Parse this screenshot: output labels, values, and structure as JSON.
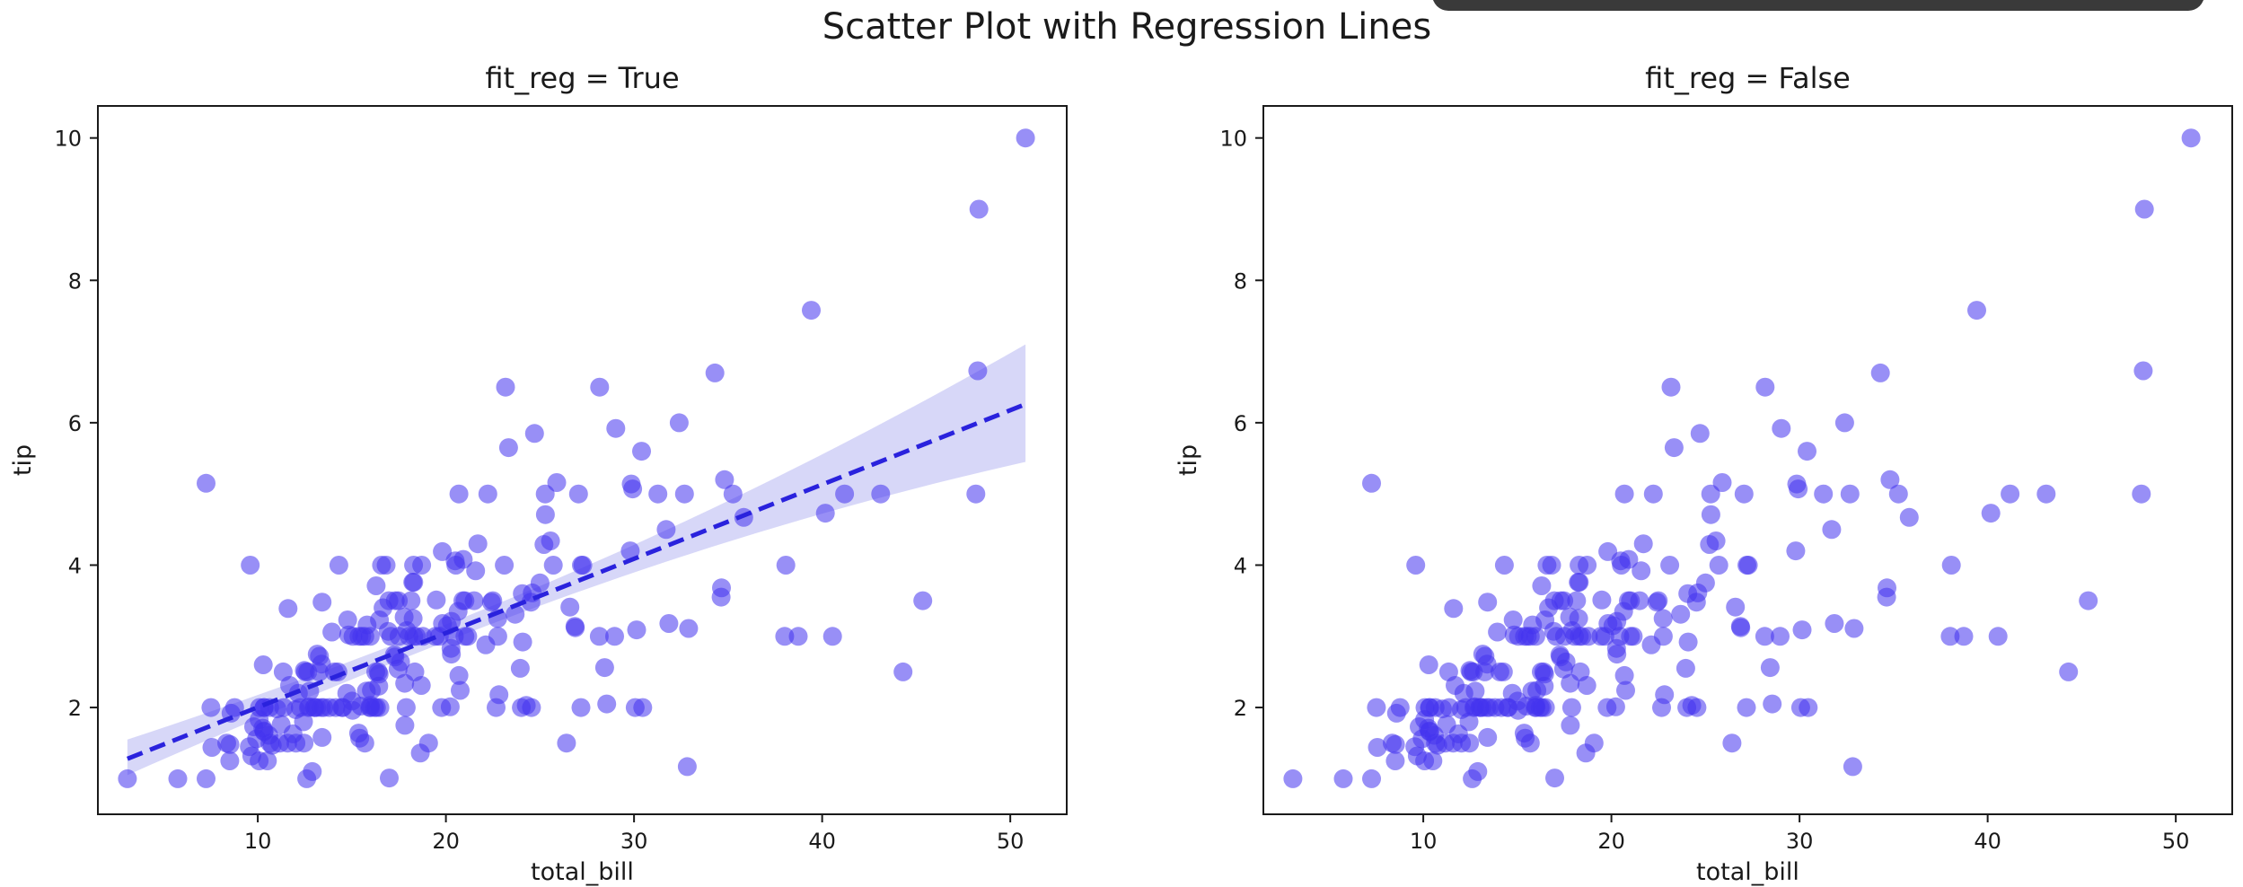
{
  "suptitle": "Scatter Plot with Regression Lines",
  "colors": {
    "points": "#4433ee",
    "regression": "#2a22dd",
    "band": "#c9c9f5"
  },
  "chart_data": [
    {
      "type": "scatter",
      "title": "fit_reg = True",
      "xlabel": "total_bill",
      "ylabel": "tip",
      "xlim": [
        1.5,
        53
      ],
      "ylim": [
        0.5,
        10.45
      ],
      "xticks": [
        10,
        20,
        30,
        40,
        50
      ],
      "yticks": [
        2,
        4,
        6,
        8,
        10
      ],
      "grid": false,
      "fit_reg": true,
      "regression": {
        "x": [
          3.07,
          50.81
        ],
        "y": [
          1.28,
          6.26
        ],
        "ci_low_end": [
          1.05,
          5.45
        ],
        "ci_high_end": [
          1.55,
          7.1
        ],
        "style": "dashed"
      },
      "points": [
        [
          3.07,
          1.0
        ],
        [
          5.75,
          1.0
        ],
        [
          7.25,
          1.0
        ],
        [
          7.25,
          5.15
        ],
        [
          7.51,
          2.0
        ],
        [
          7.56,
          1.44
        ],
        [
          8.35,
          1.5
        ],
        [
          8.51,
          1.25
        ],
        [
          8.52,
          1.48
        ],
        [
          8.58,
          1.92
        ],
        [
          8.77,
          2.0
        ],
        [
          9.55,
          1.45
        ],
        [
          9.6,
          4.0
        ],
        [
          9.68,
          1.32
        ],
        [
          9.78,
          1.73
        ],
        [
          9.94,
          1.56
        ],
        [
          10.07,
          1.25
        ],
        [
          10.07,
          1.83
        ],
        [
          10.09,
          2.0
        ],
        [
          10.27,
          1.71
        ],
        [
          10.29,
          2.6
        ],
        [
          10.33,
          1.67
        ],
        [
          10.33,
          2.0
        ],
        [
          10.34,
          1.66
        ],
        [
          10.34,
          2.0
        ],
        [
          10.51,
          1.25
        ],
        [
          10.59,
          1.61
        ],
        [
          10.63,
          2.0
        ],
        [
          10.65,
          1.5
        ],
        [
          10.77,
          1.47
        ],
        [
          11.02,
          1.98
        ],
        [
          11.17,
          1.5
        ],
        [
          11.24,
          1.76
        ],
        [
          11.35,
          2.5
        ],
        [
          11.38,
          2.0
        ],
        [
          11.59,
          1.5
        ],
        [
          11.61,
          3.39
        ],
        [
          11.69,
          2.31
        ],
        [
          11.87,
          1.63
        ],
        [
          12.02,
          1.97
        ],
        [
          12.03,
          1.5
        ],
        [
          12.16,
          2.2
        ],
        [
          12.26,
          2.0
        ],
        [
          12.43,
          1.8
        ],
        [
          12.46,
          1.5
        ],
        [
          12.48,
          2.52
        ],
        [
          12.54,
          2.5
        ],
        [
          12.6,
          1.0
        ],
        [
          12.66,
          2.5
        ],
        [
          12.69,
          2.0
        ],
        [
          12.74,
          2.01
        ],
        [
          12.76,
          2.23
        ],
        [
          12.9,
          1.1
        ],
        [
          13.0,
          2.0
        ],
        [
          13.03,
          2.0
        ],
        [
          13.13,
          2.0
        ],
        [
          13.16,
          2.75
        ],
        [
          13.27,
          2.5
        ],
        [
          13.28,
          2.72
        ],
        [
          13.37,
          2.0
        ],
        [
          13.39,
          2.61
        ],
        [
          13.42,
          1.58
        ],
        [
          13.42,
          3.48
        ],
        [
          13.51,
          2.0
        ],
        [
          13.81,
          2.0
        ],
        [
          13.94,
          3.06
        ],
        [
          14.07,
          2.5
        ],
        [
          14.15,
          2.0
        ],
        [
          14.26,
          2.5
        ],
        [
          14.31,
          4.0
        ],
        [
          14.48,
          2.0
        ],
        [
          14.52,
          2.0
        ],
        [
          14.73,
          2.2
        ],
        [
          14.78,
          3.23
        ],
        [
          14.83,
          3.02
        ],
        [
          15.01,
          2.09
        ],
        [
          15.04,
          1.96
        ],
        [
          15.06,
          3.0
        ],
        [
          15.36,
          1.64
        ],
        [
          15.38,
          3.0
        ],
        [
          15.42,
          1.57
        ],
        [
          15.48,
          2.02
        ],
        [
          15.53,
          3.0
        ],
        [
          15.69,
          1.5
        ],
        [
          15.69,
          3.0
        ],
        [
          15.77,
          2.23
        ],
        [
          15.81,
          3.16
        ],
        [
          15.95,
          2.0
        ],
        [
          15.98,
          2.03
        ],
        [
          15.98,
          3.0
        ],
        [
          16.0,
          2.0
        ],
        [
          16.04,
          2.24
        ],
        [
          16.21,
          2.0
        ],
        [
          16.27,
          2.5
        ],
        [
          16.29,
          3.71
        ],
        [
          16.31,
          2.0
        ],
        [
          16.4,
          2.5
        ],
        [
          16.43,
          2.3
        ],
        [
          16.45,
          2.47
        ],
        [
          16.47,
          3.23
        ],
        [
          16.49,
          2.0
        ],
        [
          16.58,
          4.0
        ],
        [
          16.66,
          3.4
        ],
        [
          16.82,
          4.0
        ],
        [
          16.93,
          3.07
        ],
        [
          16.97,
          3.5
        ],
        [
          16.99,
          1.01
        ],
        [
          17.07,
          3.0
        ],
        [
          17.26,
          2.74
        ],
        [
          17.29,
          2.71
        ],
        [
          17.31,
          3.5
        ],
        [
          17.46,
          2.54
        ],
        [
          17.47,
          3.5
        ],
        [
          17.51,
          3.0
        ],
        [
          17.59,
          2.64
        ],
        [
          17.78,
          3.27
        ],
        [
          17.81,
          2.34
        ],
        [
          17.82,
          1.75
        ],
        [
          17.89,
          2.0
        ],
        [
          17.92,
          3.08
        ],
        [
          18.04,
          3.0
        ],
        [
          18.15,
          3.5
        ],
        [
          18.24,
          3.76
        ],
        [
          18.26,
          3.25
        ],
        [
          18.28,
          4.0
        ],
        [
          18.29,
          3.76
        ],
        [
          18.29,
          3.0
        ],
        [
          18.35,
          2.5
        ],
        [
          18.43,
          3.0
        ],
        [
          18.64,
          1.36
        ],
        [
          18.69,
          2.31
        ],
        [
          18.71,
          4.0
        ],
        [
          18.78,
          3.0
        ],
        [
          19.08,
          1.5
        ],
        [
          19.44,
          3.0
        ],
        [
          19.49,
          3.51
        ],
        [
          19.65,
          3.0
        ],
        [
          19.77,
          2.0
        ],
        [
          19.81,
          4.19
        ],
        [
          19.82,
          3.18
        ],
        [
          20.08,
          3.15
        ],
        [
          20.23,
          2.01
        ],
        [
          20.27,
          2.83
        ],
        [
          20.29,
          2.75
        ],
        [
          20.29,
          3.21
        ],
        [
          20.45,
          3.0
        ],
        [
          20.49,
          4.06
        ],
        [
          20.53,
          4.0
        ],
        [
          20.65,
          3.35
        ],
        [
          20.69,
          2.45
        ],
        [
          20.69,
          5.0
        ],
        [
          20.76,
          2.24
        ],
        [
          20.9,
          3.5
        ],
        [
          20.92,
          4.08
        ],
        [
          21.01,
          3.0
        ],
        [
          21.01,
          3.5
        ],
        [
          21.16,
          3.0
        ],
        [
          21.5,
          3.5
        ],
        [
          21.58,
          3.92
        ],
        [
          21.7,
          4.3
        ],
        [
          22.12,
          2.88
        ],
        [
          22.23,
          5.0
        ],
        [
          22.42,
          3.48
        ],
        [
          22.49,
          3.5
        ],
        [
          22.67,
          2.0
        ],
        [
          22.75,
          3.25
        ],
        [
          22.76,
          3.0
        ],
        [
          22.82,
          2.18
        ],
        [
          23.1,
          4.0
        ],
        [
          23.17,
          6.5
        ],
        [
          23.33,
          5.65
        ],
        [
          23.68,
          3.31
        ],
        [
          23.95,
          2.55
        ],
        [
          24.01,
          2.0
        ],
        [
          24.06,
          3.6
        ],
        [
          24.08,
          2.92
        ],
        [
          24.27,
          2.03
        ],
        [
          24.52,
          3.48
        ],
        [
          24.55,
          2.0
        ],
        [
          24.59,
          3.61
        ],
        [
          24.71,
          5.85
        ],
        [
          25.0,
          3.75
        ],
        [
          25.21,
          4.29
        ],
        [
          25.28,
          5.0
        ],
        [
          25.29,
          4.71
        ],
        [
          25.56,
          4.34
        ],
        [
          25.71,
          4.0
        ],
        [
          25.89,
          5.16
        ],
        [
          26.41,
          1.5
        ],
        [
          26.59,
          3.41
        ],
        [
          26.86,
          3.14
        ],
        [
          26.88,
          3.12
        ],
        [
          27.05,
          5.0
        ],
        [
          27.18,
          2.0
        ],
        [
          27.2,
          4.0
        ],
        [
          27.28,
          4.0
        ],
        [
          28.15,
          3.0
        ],
        [
          28.17,
          6.5
        ],
        [
          28.44,
          2.56
        ],
        [
          28.55,
          2.05
        ],
        [
          28.97,
          3.0
        ],
        [
          29.03,
          5.92
        ],
        [
          29.8,
          4.2
        ],
        [
          29.85,
          5.14
        ],
        [
          29.93,
          5.07
        ],
        [
          30.06,
          2.0
        ],
        [
          30.14,
          3.09
        ],
        [
          30.4,
          5.6
        ],
        [
          30.46,
          2.0
        ],
        [
          31.27,
          5.0
        ],
        [
          31.71,
          4.5
        ],
        [
          31.85,
          3.18
        ],
        [
          32.4,
          6.0
        ],
        [
          32.68,
          5.0
        ],
        [
          32.83,
          1.17
        ],
        [
          32.9,
          3.11
        ],
        [
          34.3,
          6.7
        ],
        [
          34.63,
          3.55
        ],
        [
          34.65,
          3.68
        ],
        [
          34.81,
          5.2
        ],
        [
          35.26,
          5.0
        ],
        [
          35.83,
          4.67
        ],
        [
          38.01,
          3.0
        ],
        [
          38.07,
          4.0
        ],
        [
          38.73,
          3.0
        ],
        [
          39.42,
          7.58
        ],
        [
          40.17,
          4.73
        ],
        [
          40.55,
          3.0
        ],
        [
          41.19,
          5.0
        ],
        [
          43.11,
          5.0
        ],
        [
          44.3,
          2.5
        ],
        [
          45.35,
          3.5
        ],
        [
          48.17,
          5.0
        ],
        [
          48.27,
          6.73
        ],
        [
          48.33,
          9.0
        ],
        [
          50.81,
          10.0
        ]
      ]
    },
    {
      "type": "scatter",
      "title": "fit_reg = False",
      "xlabel": "total_bill",
      "ylabel": "tip",
      "xlim": [
        1.5,
        53
      ],
      "ylim": [
        0.5,
        10.45
      ],
      "xticks": [
        10,
        20,
        30,
        40,
        50
      ],
      "yticks": [
        2,
        4,
        6,
        8,
        10
      ],
      "grid": false,
      "fit_reg": false,
      "points": "same as fit_reg = True"
    }
  ]
}
